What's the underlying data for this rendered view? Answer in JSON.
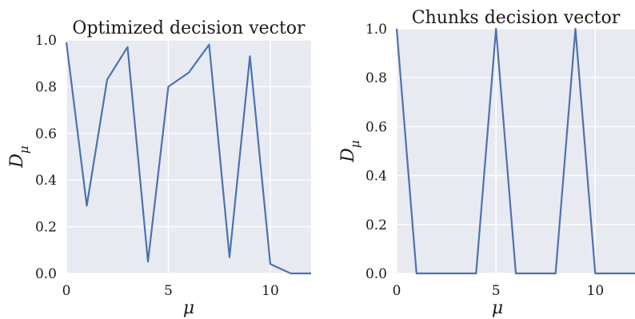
{
  "chart_data": [
    {
      "type": "line",
      "title": "Optimized decision vector",
      "xlabel": "μ",
      "ylabel": "D",
      "ylabel_subscript": "μ",
      "xlim": [
        0,
        12
      ],
      "ylim": [
        0,
        1
      ],
      "xticks": [
        "0",
        "5",
        "10"
      ],
      "yticks": [
        "0.0",
        "0.2",
        "0.4",
        "0.6",
        "0.8",
        "1.0"
      ],
      "grid": true,
      "background": "#e8eaf2",
      "series": [
        {
          "color": "#4c72b0",
          "x": [
            0,
            1,
            2,
            3,
            4,
            5,
            6,
            7,
            8,
            9,
            10,
            11,
            12
          ],
          "y": [
            0.99,
            0.29,
            0.83,
            0.97,
            0.05,
            0.8,
            0.86,
            0.98,
            0.07,
            0.93,
            0.04,
            0.0,
            0.0
          ]
        }
      ]
    },
    {
      "type": "line",
      "title": "Chunks decision vector",
      "xlabel": "μ",
      "ylabel": "D",
      "ylabel_subscript": "μ",
      "xlim": [
        0,
        12
      ],
      "ylim": [
        0,
        1
      ],
      "xticks": [
        "0",
        "5",
        "10"
      ],
      "yticks": [
        "0.0",
        "0.2",
        "0.4",
        "0.6",
        "0.8",
        "1.0"
      ],
      "grid": true,
      "background": "#e8eaf2",
      "series": [
        {
          "color": "#4c72b0",
          "x": [
            0,
            1,
            2,
            3,
            4,
            5,
            6,
            7,
            8,
            9,
            10,
            11,
            12
          ],
          "y": [
            1,
            0,
            0,
            0,
            0,
            1,
            0,
            0,
            0,
            1,
            0,
            0,
            0
          ]
        }
      ]
    }
  ]
}
